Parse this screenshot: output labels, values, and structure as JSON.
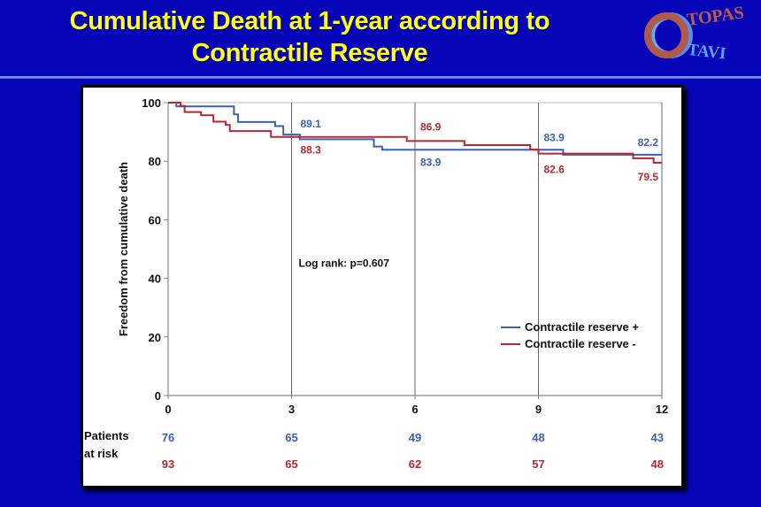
{
  "slide": {
    "title_line1": "Cumulative Death at 1-year according to",
    "title_line2": "Contractile Reserve",
    "background_color": "#0606b8",
    "title_color": "#ffff1e",
    "logo": {
      "icon": "ring-logo-icon",
      "text_top": "TOPAS",
      "text_bottom": "TAVI"
    }
  },
  "chart_data": {
    "type": "line",
    "subtype": "kaplan-meier-step",
    "title": "",
    "xlabel": "",
    "ylabel": "Freedom from cumulative death",
    "xlim": [
      0,
      12
    ],
    "ylim": [
      0,
      100
    ],
    "x_ticks": [
      0,
      3,
      6,
      9,
      12
    ],
    "y_ticks": [
      0,
      20,
      40,
      60,
      80,
      100
    ],
    "vertical_gridlines_at": [
      3,
      6,
      9,
      12
    ],
    "legend_position": "lower-right",
    "series": [
      {
        "name": "Contractile reserve +",
        "color": "#3a60b8",
        "steps": [
          [
            0,
            100
          ],
          [
            0.2,
            98.7
          ],
          [
            1.5,
            98.7
          ],
          [
            1.6,
            96
          ],
          [
            1.7,
            93.4
          ],
          [
            2.5,
            93.4
          ],
          [
            2.6,
            92
          ],
          [
            2.8,
            89.1
          ],
          [
            3.2,
            87.5
          ],
          [
            5.0,
            85
          ],
          [
            5.2,
            83.9
          ],
          [
            9.5,
            83.9
          ],
          [
            9.6,
            82.2
          ],
          [
            12,
            82.2
          ]
        ],
        "labels": [
          {
            "x": 3,
            "text": "89.1"
          },
          {
            "x": 6,
            "text": "83.9"
          },
          {
            "x": 9,
            "text": "83.9"
          },
          {
            "x": 12,
            "text": "82.2"
          }
        ]
      },
      {
        "name": "Contractile reserve -",
        "color": "#b42a30",
        "steps": [
          [
            0,
            100
          ],
          [
            0.3,
            98.9
          ],
          [
            0.4,
            96.8
          ],
          [
            0.8,
            95.7
          ],
          [
            1.1,
            93.5
          ],
          [
            1.4,
            92.4
          ],
          [
            1.5,
            90.3
          ],
          [
            2.4,
            90.3
          ],
          [
            2.5,
            88.3
          ],
          [
            5.7,
            88.3
          ],
          [
            5.8,
            86.9
          ],
          [
            7.1,
            86.9
          ],
          [
            7.2,
            85.5
          ],
          [
            8.6,
            85.5
          ],
          [
            8.8,
            84
          ],
          [
            9.0,
            82.6
          ],
          [
            11.2,
            82.6
          ],
          [
            11.3,
            81
          ],
          [
            11.8,
            79.5
          ],
          [
            12,
            79.5
          ]
        ],
        "labels": [
          {
            "x": 3,
            "text": "88.3"
          },
          {
            "x": 6,
            "text": "86.9"
          },
          {
            "x": 9,
            "text": "82.6"
          },
          {
            "x": 12,
            "text": "79.5"
          }
        ]
      }
    ],
    "annotation": "Log rank: p=0.607",
    "risk_table": {
      "header_line1": "Patients",
      "header_line2": "at risk",
      "timepoints": [
        0,
        3,
        6,
        9,
        12
      ],
      "rows": [
        {
          "series": "Contractile reserve +",
          "values": [
            76,
            65,
            49,
            48,
            43
          ]
        },
        {
          "series": "Contractile reserve -",
          "values": [
            93,
            65,
            62,
            57,
            48
          ]
        }
      ]
    }
  }
}
